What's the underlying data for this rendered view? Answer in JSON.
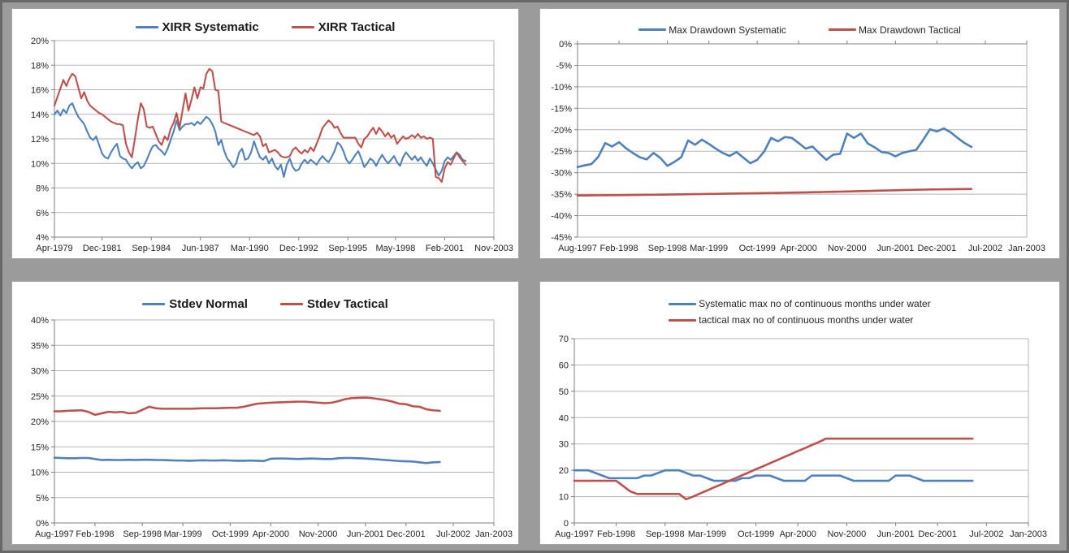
{
  "window": {
    "background": "#9b9b9b",
    "frame": "#686868"
  },
  "colors": {
    "systematic_blue": "#4F81BD",
    "tactical_red": "#C0504D",
    "gridline": "#b3b3b3",
    "axis": "#7f7f7f",
    "tick_text": "#262626"
  },
  "chart_data": [
    {
      "type": "line",
      "title": "",
      "legend_position": "top-center",
      "grid": "horizontal",
      "ylim": [
        4,
        20
      ],
      "ytick_values": [
        20,
        18,
        16,
        14,
        12,
        10,
        8,
        6,
        4
      ],
      "ytick_labels": [
        "20%",
        "18%",
        "16%",
        "14%",
        "12%",
        "10%",
        "8%",
        "6%",
        "4%"
      ],
      "x_axis_months": 295,
      "category_axis": "bottom",
      "xticks": [
        {
          "m": 0,
          "label": "Apr-1979"
        },
        {
          "m": 32,
          "label": "Dec-1981"
        },
        {
          "m": 65,
          "label": "Sep-1984"
        },
        {
          "m": 98,
          "label": "Jun-1987"
        },
        {
          "m": 131,
          "label": "Mar-1990"
        },
        {
          "m": 164,
          "label": "Dec-1992"
        },
        {
          "m": 197,
          "label": "Sep-1995"
        },
        {
          "m": 229,
          "label": "May-1998"
        },
        {
          "m": 262,
          "label": "Feb-2001"
        },
        {
          "m": 295,
          "label": "Nov-2003"
        }
      ],
      "series": [
        {
          "name": "XIRR Systematic",
          "color": "#4F81BD",
          "start_month": 0,
          "month_step": 2,
          "line_width": 2.1,
          "values": [
            14.0,
            14.3,
            13.9,
            14.4,
            14.1,
            14.7,
            14.9,
            14.3,
            13.8,
            13.5,
            13.2,
            12.6,
            12.1,
            11.9,
            12.2,
            11.5,
            10.8,
            10.5,
            10.4,
            10.9,
            11.3,
            11.6,
            10.6,
            10.4,
            10.3,
            9.9,
            9.6,
            9.9,
            10.1,
            9.6,
            9.8,
            10.3,
            10.9,
            11.4,
            11.5,
            11.2,
            11.0,
            10.7,
            11.2,
            11.9,
            12.6,
            13.5,
            12.7,
            13.0,
            13.2,
            13.2,
            13.3,
            13.1,
            13.4,
            13.2,
            13.5,
            13.8,
            13.6,
            13.2,
            12.6,
            11.5,
            11.9,
            11.0,
            10.4,
            10.1,
            9.7,
            10.0,
            10.9,
            11.2,
            10.3,
            10.4,
            10.9,
            11.8,
            11.1,
            10.5,
            10.3,
            10.6,
            10.0,
            10.4,
            9.8,
            9.5,
            9.9,
            8.9,
            9.9,
            10.4,
            9.7,
            9.4,
            9.5,
            10.0,
            10.3,
            10.0,
            10.3,
            10.1,
            9.9,
            10.3,
            10.6,
            10.3,
            10.1,
            10.5,
            11.0,
            11.7,
            11.5,
            11.0,
            10.3,
            10.0,
            10.3,
            10.7,
            11.0,
            10.4,
            9.7,
            10.0,
            10.4,
            10.2,
            9.8,
            10.3,
            10.7,
            10.3,
            10.0,
            10.3,
            10.6,
            10.1,
            9.8,
            10.5,
            10.9,
            10.6,
            10.3,
            10.6,
            10.2,
            10.5,
            10.1,
            9.8,
            10.4,
            10.0,
            9.5,
            9.0,
            9.4,
            10.2,
            10.5,
            10.3,
            10.6,
            10.9,
            10.7,
            10.3,
            10.2
          ]
        },
        {
          "name": "XIRR Tactical",
          "color": "#C0504D",
          "start_month": 0,
          "month_step": 2,
          "line_width": 2.1,
          "values": [
            14.7,
            15.4,
            16.1,
            16.8,
            16.3,
            16.9,
            17.3,
            17.1,
            16.2,
            15.3,
            15.8,
            15.1,
            14.7,
            14.5,
            14.3,
            14.1,
            14.0,
            13.8,
            13.6,
            13.4,
            13.3,
            13.2,
            13.2,
            13.1,
            11.6,
            10.9,
            10.5,
            12.0,
            13.6,
            14.9,
            14.4,
            13.0,
            12.9,
            13.0,
            12.4,
            11.8,
            11.5,
            12.2,
            11.9,
            12.8,
            13.3,
            14.1,
            12.9,
            14.3,
            15.7,
            14.3,
            15.2,
            16.2,
            15.3,
            16.2,
            16.1,
            17.3,
            17.7,
            17.5,
            16.0,
            15.9,
            13.4,
            13.3,
            13.2,
            13.1,
            13.0,
            12.9,
            12.8,
            12.7,
            12.6,
            12.5,
            12.4,
            12.3,
            12.5,
            12.2,
            11.4,
            11.6,
            10.9,
            11.0,
            11.1,
            10.9,
            10.6,
            10.5,
            10.5,
            10.6,
            11.1,
            11.3,
            11.0,
            10.8,
            11.1,
            10.9,
            11.3,
            11.0,
            11.6,
            12.2,
            12.9,
            13.2,
            13.5,
            13.3,
            12.9,
            13.0,
            12.5,
            12.1,
            12.1,
            12.1,
            12.1,
            12.1,
            11.6,
            11.3,
            12.0,
            12.2,
            12.6,
            12.9,
            12.4,
            12.9,
            12.6,
            12.2,
            12.5,
            12.1,
            12.3,
            11.6,
            11.9,
            12.2,
            12.0,
            12.1,
            12.3,
            12.1,
            12.4,
            12.1,
            12.2,
            12.0,
            12.1,
            12.0,
            8.9,
            8.8,
            8.5,
            9.6,
            10.1,
            9.9,
            10.4,
            10.9,
            10.5,
            10.2,
            9.9
          ]
        }
      ]
    },
    {
      "type": "line",
      "title": "",
      "legend_position": "top-center",
      "grid": "horizontal",
      "ylim": [
        -45,
        0
      ],
      "ytick_values": [
        0,
        -5,
        -10,
        -15,
        -20,
        -25,
        -30,
        -35,
        -40,
        -45
      ],
      "ytick_labels": [
        "0%",
        "-5%",
        "-10%",
        "-15%",
        "-20%",
        "-25%",
        "-30%",
        "-35%",
        "-40%",
        "-45%"
      ],
      "x_axis_months": 65,
      "category_axis": "top-zero",
      "xticks": [
        {
          "m": 0,
          "label": "Aug-1997"
        },
        {
          "m": 6,
          "label": "Feb-1998"
        },
        {
          "m": 13,
          "label": "Sep-1998"
        },
        {
          "m": 19,
          "label": "Mar-1999"
        },
        {
          "m": 26,
          "label": "Oct-1999"
        },
        {
          "m": 32,
          "label": "Apr-2000"
        },
        {
          "m": 39,
          "label": "Nov-2000"
        },
        {
          "m": 46,
          "label": "Jun-2001"
        },
        {
          "m": 52,
          "label": "Dec-2001"
        },
        {
          "m": 59,
          "label": "Jul-2002"
        },
        {
          "m": 65,
          "label": "Jan-2003"
        }
      ],
      "series": [
        {
          "name": "Max Drawdown Systematic",
          "color": "#4F81BD",
          "start_month": 0,
          "month_step": 1,
          "line_width": 2.6,
          "values": [
            -28.7,
            -28.3,
            -28.0,
            -26.3,
            -23.1,
            -23.9,
            -22.9,
            -24.3,
            -25.4,
            -26.4,
            -26.9,
            -25.4,
            -26.6,
            -28.4,
            -27.5,
            -26.4,
            -22.5,
            -23.5,
            -22.3,
            -23.3,
            -24.4,
            -25.4,
            -26.1,
            -25.2,
            -26.5,
            -27.8,
            -27.0,
            -25.1,
            -21.9,
            -22.7,
            -21.7,
            -21.9,
            -23.1,
            -24.4,
            -23.9,
            -25.5,
            -27.0,
            -25.8,
            -25.6,
            -20.9,
            -21.9,
            -20.9,
            -23.2,
            -24.1,
            -25.2,
            -25.4,
            -26.2,
            -25.4,
            -25.0,
            -24.7,
            -22.4,
            -19.9,
            -20.4,
            -19.7,
            -20.6,
            -21.9,
            -23.1,
            -24.0
          ]
        },
        {
          "name": "Max Drawdown Tactical",
          "color": "#C0504D",
          "start_month": 0,
          "month_step": 1,
          "line_width": 2.6,
          "values": [
            -35.3,
            -35.29,
            -35.28,
            -35.26,
            -35.25,
            -35.23,
            -35.22,
            -35.2,
            -35.18,
            -35.16,
            -35.14,
            -35.12,
            -35.1,
            -35.08,
            -35.06,
            -35.04,
            -35.02,
            -35.0,
            -34.98,
            -34.95,
            -34.93,
            -34.9,
            -34.88,
            -34.85,
            -34.83,
            -34.8,
            -34.78,
            -34.75,
            -34.72,
            -34.7,
            -34.67,
            -34.64,
            -34.61,
            -34.58,
            -34.55,
            -34.52,
            -34.48,
            -34.45,
            -34.41,
            -34.37,
            -34.33,
            -34.29,
            -34.25,
            -34.21,
            -34.17,
            -34.13,
            -34.09,
            -34.05,
            -34.01,
            -33.97,
            -33.94,
            -33.91,
            -33.89,
            -33.87,
            -33.85,
            -33.83,
            -33.81,
            -33.8
          ]
        }
      ]
    },
    {
      "type": "line",
      "title": "",
      "legend_position": "top-center",
      "grid": "horizontal",
      "ylim": [
        0,
        40
      ],
      "ytick_values": [
        40,
        35,
        30,
        25,
        20,
        15,
        10,
        5,
        0
      ],
      "ytick_labels": [
        "40%",
        "35%",
        "30%",
        "25%",
        "20%",
        "15%",
        "10%",
        "5%",
        "0%"
      ],
      "x_axis_months": 65,
      "category_axis": "bottom",
      "xticks": [
        {
          "m": 0,
          "label": "Aug-1997"
        },
        {
          "m": 6,
          "label": "Feb-1998"
        },
        {
          "m": 13,
          "label": "Sep-1998"
        },
        {
          "m": 19,
          "label": "Mar-1999"
        },
        {
          "m": 26,
          "label": "Oct-1999"
        },
        {
          "m": 32,
          "label": "Apr-2000"
        },
        {
          "m": 39,
          "label": "Nov-2000"
        },
        {
          "m": 46,
          "label": "Jun-2001"
        },
        {
          "m": 52,
          "label": "Dec-2001"
        },
        {
          "m": 59,
          "label": "Jul-2002"
        },
        {
          "m": 65,
          "label": "Jan-2003"
        }
      ],
      "series": [
        {
          "name": "Stdev Normal",
          "color": "#4F81BD",
          "start_month": 0,
          "month_step": 1,
          "line_width": 2.6,
          "values": [
            12.85,
            12.8,
            12.75,
            12.75,
            12.8,
            12.8,
            12.6,
            12.4,
            12.45,
            12.4,
            12.4,
            12.45,
            12.4,
            12.45,
            12.45,
            12.4,
            12.4,
            12.35,
            12.3,
            12.3,
            12.25,
            12.3,
            12.35,
            12.3,
            12.3,
            12.35,
            12.3,
            12.25,
            12.25,
            12.3,
            12.25,
            12.2,
            12.65,
            12.7,
            12.7,
            12.65,
            12.6,
            12.65,
            12.7,
            12.65,
            12.6,
            12.6,
            12.75,
            12.8,
            12.8,
            12.75,
            12.7,
            12.6,
            12.5,
            12.4,
            12.3,
            12.2,
            12.15,
            12.1,
            11.95,
            11.8,
            11.95,
            12.0
          ]
        },
        {
          "name": "Stdev Tactical",
          "color": "#C0504D",
          "start_month": 0,
          "month_step": 1,
          "line_width": 2.6,
          "values": [
            22.0,
            22.0,
            22.1,
            22.15,
            22.2,
            21.9,
            21.3,
            21.6,
            21.9,
            21.8,
            21.9,
            21.6,
            21.7,
            22.3,
            22.9,
            22.6,
            22.5,
            22.5,
            22.5,
            22.5,
            22.5,
            22.55,
            22.6,
            22.6,
            22.6,
            22.65,
            22.7,
            22.7,
            22.9,
            23.2,
            23.5,
            23.6,
            23.7,
            23.75,
            23.8,
            23.85,
            23.9,
            23.9,
            23.8,
            23.7,
            23.6,
            23.7,
            24.0,
            24.4,
            24.6,
            24.65,
            24.7,
            24.6,
            24.4,
            24.2,
            23.9,
            23.5,
            23.4,
            23.0,
            22.9,
            22.4,
            22.2,
            22.1
          ]
        }
      ]
    },
    {
      "type": "line",
      "title": "",
      "legend_position": "top-center-stacked",
      "grid": "horizontal",
      "ylim": [
        0,
        70
      ],
      "ytick_values": [
        70,
        60,
        50,
        40,
        30,
        20,
        10,
        0
      ],
      "ytick_labels": [
        "70",
        "60",
        "50",
        "40",
        "30",
        "20",
        "10",
        "0"
      ],
      "x_axis_months": 65,
      "category_axis": "bottom",
      "xticks": [
        {
          "m": 0,
          "label": "Aug-1997"
        },
        {
          "m": 6,
          "label": "Feb-1998"
        },
        {
          "m": 13,
          "label": "Sep-1998"
        },
        {
          "m": 19,
          "label": "Mar-1999"
        },
        {
          "m": 26,
          "label": "Oct-1999"
        },
        {
          "m": 32,
          "label": "Apr-2000"
        },
        {
          "m": 39,
          "label": "Nov-2000"
        },
        {
          "m": 46,
          "label": "Jun-2001"
        },
        {
          "m": 52,
          "label": "Dec-2001"
        },
        {
          "m": 59,
          "label": "Jul-2002"
        },
        {
          "m": 65,
          "label": "Jan-2003"
        }
      ],
      "series": [
        {
          "name": "Systematic max no of continuous months under water",
          "color": "#4F81BD",
          "start_month": 0,
          "month_step": 1,
          "line_width": 2.6,
          "values": [
            20,
            20,
            20,
            19,
            18,
            17,
            17,
            17,
            17,
            17,
            18,
            18,
            19,
            20,
            20,
            20,
            19,
            18,
            18,
            17,
            16,
            16,
            16,
            16,
            17,
            17,
            18,
            18,
            18,
            17,
            16,
            16,
            16,
            16,
            18,
            18,
            18,
            18,
            18,
            17,
            16,
            16,
            16,
            16,
            16,
            16,
            18,
            18,
            18,
            17,
            16,
            16,
            16,
            16,
            16,
            16,
            16,
            16
          ]
        },
        {
          "name": "tactical max no of continuous months under water",
          "color": "#C0504D",
          "start_month": 0,
          "month_step": 1,
          "line_width": 2.6,
          "values": [
            16,
            16,
            16,
            16,
            16,
            16,
            16,
            14,
            12,
            11,
            11,
            11,
            11,
            11,
            11,
            11,
            9,
            10,
            11.2,
            12.3,
            13.5,
            14.6,
            15.8,
            16.9,
            18.1,
            19.2,
            20.4,
            21.5,
            22.7,
            23.8,
            25,
            26.1,
            27.3,
            28.4,
            29.6,
            30.7,
            32,
            32,
            32,
            32,
            32,
            32,
            32,
            32,
            32,
            32,
            32,
            32,
            32,
            32,
            32,
            32,
            32,
            32,
            32,
            32,
            32,
            32
          ]
        }
      ]
    }
  ]
}
